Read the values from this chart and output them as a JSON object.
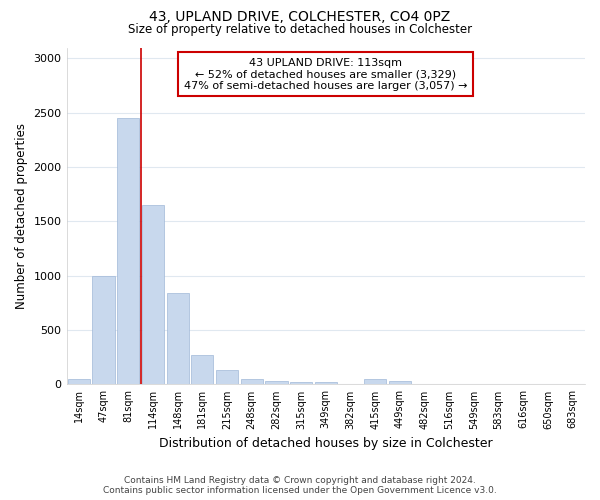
{
  "title1": "43, UPLAND DRIVE, COLCHESTER, CO4 0PZ",
  "title2": "Size of property relative to detached houses in Colchester",
  "xlabel": "Distribution of detached houses by size in Colchester",
  "ylabel": "Number of detached properties",
  "categories": [
    "14sqm",
    "47sqm",
    "81sqm",
    "114sqm",
    "148sqm",
    "181sqm",
    "215sqm",
    "248sqm",
    "282sqm",
    "315sqm",
    "349sqm",
    "382sqm",
    "415sqm",
    "449sqm",
    "482sqm",
    "516sqm",
    "549sqm",
    "583sqm",
    "616sqm",
    "650sqm",
    "683sqm"
  ],
  "values": [
    50,
    1000,
    2450,
    1650,
    840,
    270,
    130,
    50,
    35,
    25,
    25,
    0,
    50,
    30,
    0,
    0,
    0,
    0,
    0,
    0,
    0
  ],
  "bar_color": "#c8d8ed",
  "bar_edge_color": "#a0b8d8",
  "vline_x": 2.5,
  "annotation_title": "43 UPLAND DRIVE: 113sqm",
  "annotation_line1": "← 52% of detached houses are smaller (3,329)",
  "annotation_line2": "47% of semi-detached houses are larger (3,057) →",
  "vline_color": "#cc0000",
  "box_edge_color": "#cc0000",
  "ylim": [
    0,
    3100
  ],
  "yticks": [
    0,
    500,
    1000,
    1500,
    2000,
    2500,
    3000
  ],
  "footer1": "Contains HM Land Registry data © Crown copyright and database right 2024.",
  "footer2": "Contains public sector information licensed under the Open Government Licence v3.0.",
  "background_color": "#ffffff",
  "grid_color": "#e0e8f0"
}
